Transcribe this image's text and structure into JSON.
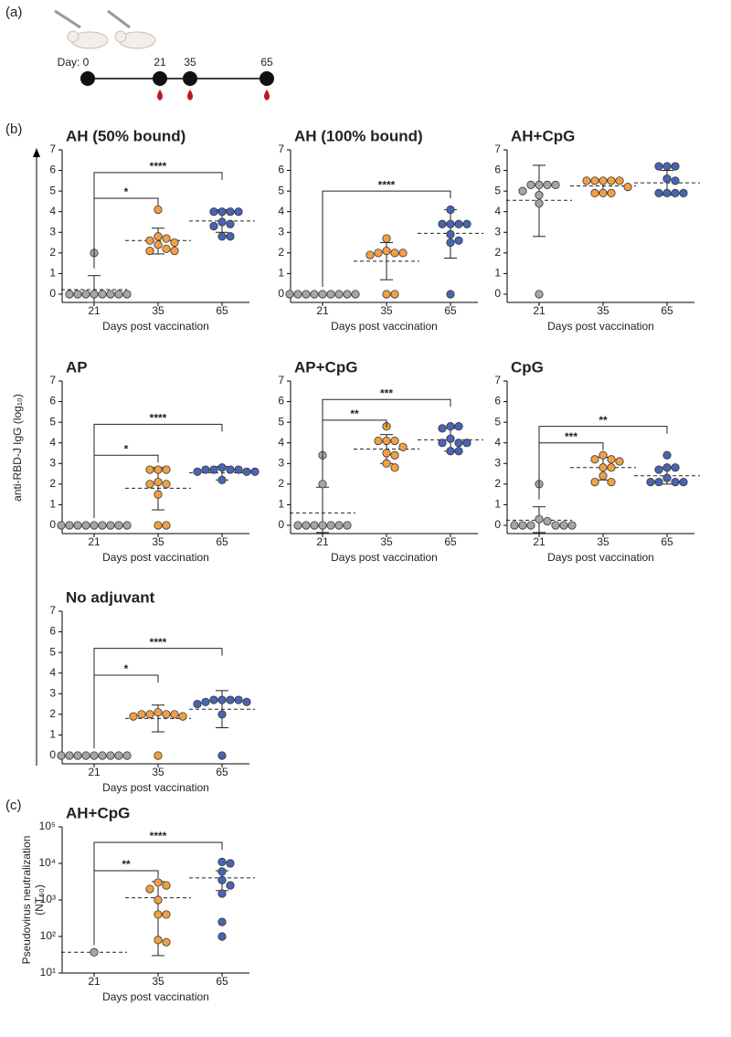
{
  "panel_labels": [
    "(a)",
    "(b)",
    "(c)"
  ],
  "timeline": {
    "days": [
      "Day: 0",
      "21",
      "35",
      "65"
    ]
  },
  "y_label": "anti-RBD-J IgG (log₁₀)",
  "chart_data": [
    {
      "type": "dotplot",
      "title": "AH (50% bound)",
      "x_label": "Days post vaccination",
      "categories": [
        "21",
        "35",
        "65"
      ],
      "ylim": [
        -0.4,
        7
      ],
      "yticks": [
        0,
        1,
        2,
        3,
        4,
        5,
        6,
        7
      ],
      "groups": [
        {
          "color": "#a6a6a6",
          "values": [
            2,
            0,
            0,
            0,
            0,
            0,
            0,
            0,
            0
          ],
          "mean": 0.22,
          "err_low": -0.4,
          "err_high": 0.9
        },
        {
          "color": "#f2a044",
          "values": [
            4.1,
            2.8,
            2.7,
            2.6,
            2.5,
            2.4,
            2.2,
            2.1,
            2.1
          ],
          "mean": 2.6,
          "err_low": 1.95,
          "err_high": 3.2
        },
        {
          "color": "#4a64b4",
          "values": [
            4,
            4,
            4,
            4,
            3.5,
            3.4,
            3.3,
            2.8,
            2.8
          ],
          "mean": 3.55,
          "err_low": 3,
          "err_high": 4.1
        }
      ],
      "brackets": [
        {
          "between": [
            "21",
            "35"
          ],
          "y": 4.65,
          "label": "*"
        },
        {
          "between": [
            "21",
            "65"
          ],
          "y": 5.9,
          "label": "****"
        }
      ]
    },
    {
      "type": "dotplot",
      "title": "AH (100% bound)",
      "x_label": "Days post vaccination",
      "categories": [
        "21",
        "35",
        "65"
      ],
      "ylim": [
        -0.4,
        7
      ],
      "yticks": [
        0,
        1,
        2,
        3,
        4,
        5,
        6,
        7
      ],
      "groups": [
        {
          "color": "#a6a6a6",
          "values": [
            0,
            0,
            0,
            0,
            0,
            0,
            0,
            0,
            0
          ],
          "mean": 0,
          "err_low": 0,
          "err_high": 0
        },
        {
          "color": "#f2a044",
          "values": [
            2.7,
            2.1,
            2,
            2,
            2,
            1.9,
            0,
            0
          ],
          "mean": 1.6,
          "err_low": 0.7,
          "err_high": 2.5
        },
        {
          "color": "#4a64b4",
          "values": [
            4.1,
            3.4,
            3.4,
            3.4,
            3.4,
            2.9,
            2.6,
            2.5,
            0
          ],
          "mean": 2.95,
          "err_low": 1.75,
          "err_high": 4.1
        }
      ],
      "brackets": [
        {
          "between": [
            "21",
            "65"
          ],
          "y": 5,
          "label": "****"
        }
      ]
    },
    {
      "type": "dotplot",
      "title": "AH+CpG",
      "x_label": "Days post vaccination",
      "categories": [
        "21",
        "35",
        "65"
      ],
      "ylim": [
        -0.4,
        7
      ],
      "yticks": [
        0,
        1,
        2,
        3,
        4,
        5,
        6,
        7
      ],
      "groups": [
        {
          "color": "#a6a6a6",
          "values": [
            5.3,
            5.3,
            5.3,
            5.3,
            5,
            4.8,
            4.4,
            0
          ],
          "mean": 4.55,
          "err_low": 2.8,
          "err_high": 6.25
        },
        {
          "color": "#f2a044",
          "values": [
            5.5,
            5.5,
            5.5,
            5.5,
            5.5,
            5.2,
            4.9,
            4.9,
            4.9
          ],
          "mean": 5.25,
          "err_low": 4.95,
          "err_high": 5.55
        },
        {
          "color": "#4a64b4",
          "values": [
            6.2,
            6.2,
            6.2,
            5.6,
            5.5,
            4.9,
            4.9,
            4.9,
            4.9
          ],
          "mean": 5.4,
          "err_low": 4.8,
          "err_high": 6
        }
      ],
      "brackets": []
    },
    {
      "type": "dotplot",
      "title": "AP",
      "x_label": "Days post vaccination",
      "categories": [
        "21",
        "35",
        "65"
      ],
      "ylim": [
        -0.4,
        7
      ],
      "yticks": [
        0,
        1,
        2,
        3,
        4,
        5,
        6,
        7
      ],
      "groups": [
        {
          "color": "#a6a6a6",
          "values": [
            0,
            0,
            0,
            0,
            0,
            0,
            0,
            0,
            0
          ],
          "mean": 0,
          "err_low": 0,
          "err_high": 0
        },
        {
          "color": "#f2a044",
          "values": [
            2.7,
            2.7,
            2.7,
            2.1,
            2,
            2,
            1.5,
            0,
            0
          ],
          "mean": 1.8,
          "err_low": 0.75,
          "err_high": 2.8
        },
        {
          "color": "#4a64b4",
          "values": [
            2.8,
            2.7,
            2.7,
            2.7,
            2.7,
            2.6,
            2.6,
            2.6,
            2.2
          ],
          "mean": 2.55,
          "err_low": 2.2,
          "err_high": 2.85
        }
      ],
      "brackets": [
        {
          "between": [
            "21",
            "35"
          ],
          "y": 3.4,
          "label": "*"
        },
        {
          "between": [
            "21",
            "65"
          ],
          "y": 4.9,
          "label": "****"
        }
      ]
    },
    {
      "type": "dotplot",
      "title": "AP+CpG",
      "x_label": "Days post vaccination",
      "categories": [
        "21",
        "35",
        "65"
      ],
      "ylim": [
        -0.4,
        7
      ],
      "yticks": [
        0,
        1,
        2,
        3,
        4,
        5,
        6,
        7
      ],
      "groups": [
        {
          "color": "#a6a6a6",
          "values": [
            3.4,
            2,
            0,
            0,
            0,
            0,
            0,
            0,
            0
          ],
          "mean": 0.6,
          "err_low": -0.35,
          "err_high": 1.85
        },
        {
          "color": "#f2a044",
          "values": [
            4.8,
            4.1,
            4.1,
            4.1,
            3.8,
            3.5,
            3.4,
            3,
            2.8
          ],
          "mean": 3.7,
          "err_low": 3,
          "err_high": 4.4
        },
        {
          "color": "#4a64b4",
          "values": [
            4.8,
            4.8,
            4.7,
            4.2,
            4,
            4,
            4,
            3.6,
            3.6
          ],
          "mean": 4.15,
          "err_low": 3.6,
          "err_high": 4.7
        }
      ],
      "brackets": [
        {
          "between": [
            "21",
            "35"
          ],
          "y": 5.1,
          "label": "**"
        },
        {
          "between": [
            "21",
            "65"
          ],
          "y": 6.1,
          "label": "***"
        }
      ]
    },
    {
      "type": "dotplot",
      "title": "CpG",
      "x_label": "Days post vaccination",
      "categories": [
        "21",
        "35",
        "65"
      ],
      "ylim": [
        -0.4,
        7
      ],
      "yticks": [
        0,
        1,
        2,
        3,
        4,
        5,
        6,
        7
      ],
      "groups": [
        {
          "color": "#a6a6a6",
          "values": [
            2,
            0.3,
            0.2,
            0,
            0,
            0,
            0,
            0,
            0
          ],
          "mean": 0.25,
          "err_low": -0.35,
          "err_high": 0.9
        },
        {
          "color": "#f2a044",
          "values": [
            3.4,
            3.2,
            3.2,
            3.1,
            2.8,
            2.8,
            2.4,
            2.1,
            2.1
          ],
          "mean": 2.8,
          "err_low": 2.2,
          "err_high": 3.3
        },
        {
          "color": "#4a64b4",
          "values": [
            3.4,
            2.8,
            2.8,
            2.7,
            2.3,
            2.1,
            2.1,
            2.1,
            2.1
          ],
          "mean": 2.4,
          "err_low": 2,
          "err_high": 2.8
        }
      ],
      "brackets": [
        {
          "between": [
            "21",
            "35"
          ],
          "y": 4,
          "label": "***"
        },
        {
          "between": [
            "21",
            "65"
          ],
          "y": 4.8,
          "label": "**"
        }
      ]
    },
    {
      "type": "dotplot",
      "title": "No adjuvant",
      "x_label": "Days post vaccination",
      "categories": [
        "21",
        "35",
        "65"
      ],
      "ylim": [
        -0.4,
        7
      ],
      "yticks": [
        0,
        1,
        2,
        3,
        4,
        5,
        6,
        7
      ],
      "groups": [
        {
          "color": "#a6a6a6",
          "values": [
            0,
            0,
            0,
            0,
            0,
            0,
            0,
            0,
            0
          ],
          "mean": 0,
          "err_low": 0,
          "err_high": 0
        },
        {
          "color": "#f2a044",
          "values": [
            2.1,
            2,
            2,
            2,
            2,
            1.9,
            1.9,
            0
          ],
          "mean": 1.8,
          "err_low": 1.15,
          "err_high": 2.45
        },
        {
          "color": "#4a64b4",
          "values": [
            2.7,
            2.7,
            2.7,
            2.7,
            2.6,
            2.6,
            2.5,
            2,
            0
          ],
          "mean": 2.25,
          "err_low": 1.35,
          "err_high": 3.15
        }
      ],
      "brackets": [
        {
          "between": [
            "21",
            "35"
          ],
          "y": 3.9,
          "label": "*"
        },
        {
          "between": [
            "21",
            "65"
          ],
          "y": 5.2,
          "label": "****"
        }
      ]
    },
    {
      "type": "dotplot",
      "log": true,
      "title": "AH+CpG",
      "x_label": "Days post vaccination",
      "y_label": [
        "Pseudovirus neutralization",
        "(NT₅₀)"
      ],
      "categories": [
        "21",
        "35",
        "65"
      ],
      "ylim": [
        10,
        100000
      ],
      "yticks": [
        {
          "value": 10,
          "label": "10¹"
        },
        {
          "value": 100,
          "label": "10²"
        },
        {
          "value": 1000,
          "label": "10³"
        },
        {
          "value": 10000,
          "label": "10⁴"
        },
        {
          "value": 100000,
          "label": "10⁵"
        }
      ],
      "groups": [
        {
          "color": "#a6a6a6",
          "values": [
            37
          ],
          "mean": 37,
          "err_low": 37,
          "err_high": 37
        },
        {
          "color": "#f2a044",
          "values": [
            3000,
            2500,
            2000,
            1000,
            400,
            400,
            80,
            70
          ],
          "mean": 1150,
          "err_low": 30,
          "err_high": 3200
        },
        {
          "color": "#4a64b4",
          "values": [
            11000,
            10000,
            6000,
            3500,
            2500,
            1500,
            250,
            100
          ],
          "mean": 4000,
          "err_low": 1800,
          "err_high": 6300
        }
      ],
      "brackets": [
        {
          "between": [
            "21",
            "35"
          ],
          "y": 6300,
          "label": "**"
        },
        {
          "between": [
            "21",
            "65"
          ],
          "y": 37600,
          "label": "****"
        }
      ]
    }
  ]
}
